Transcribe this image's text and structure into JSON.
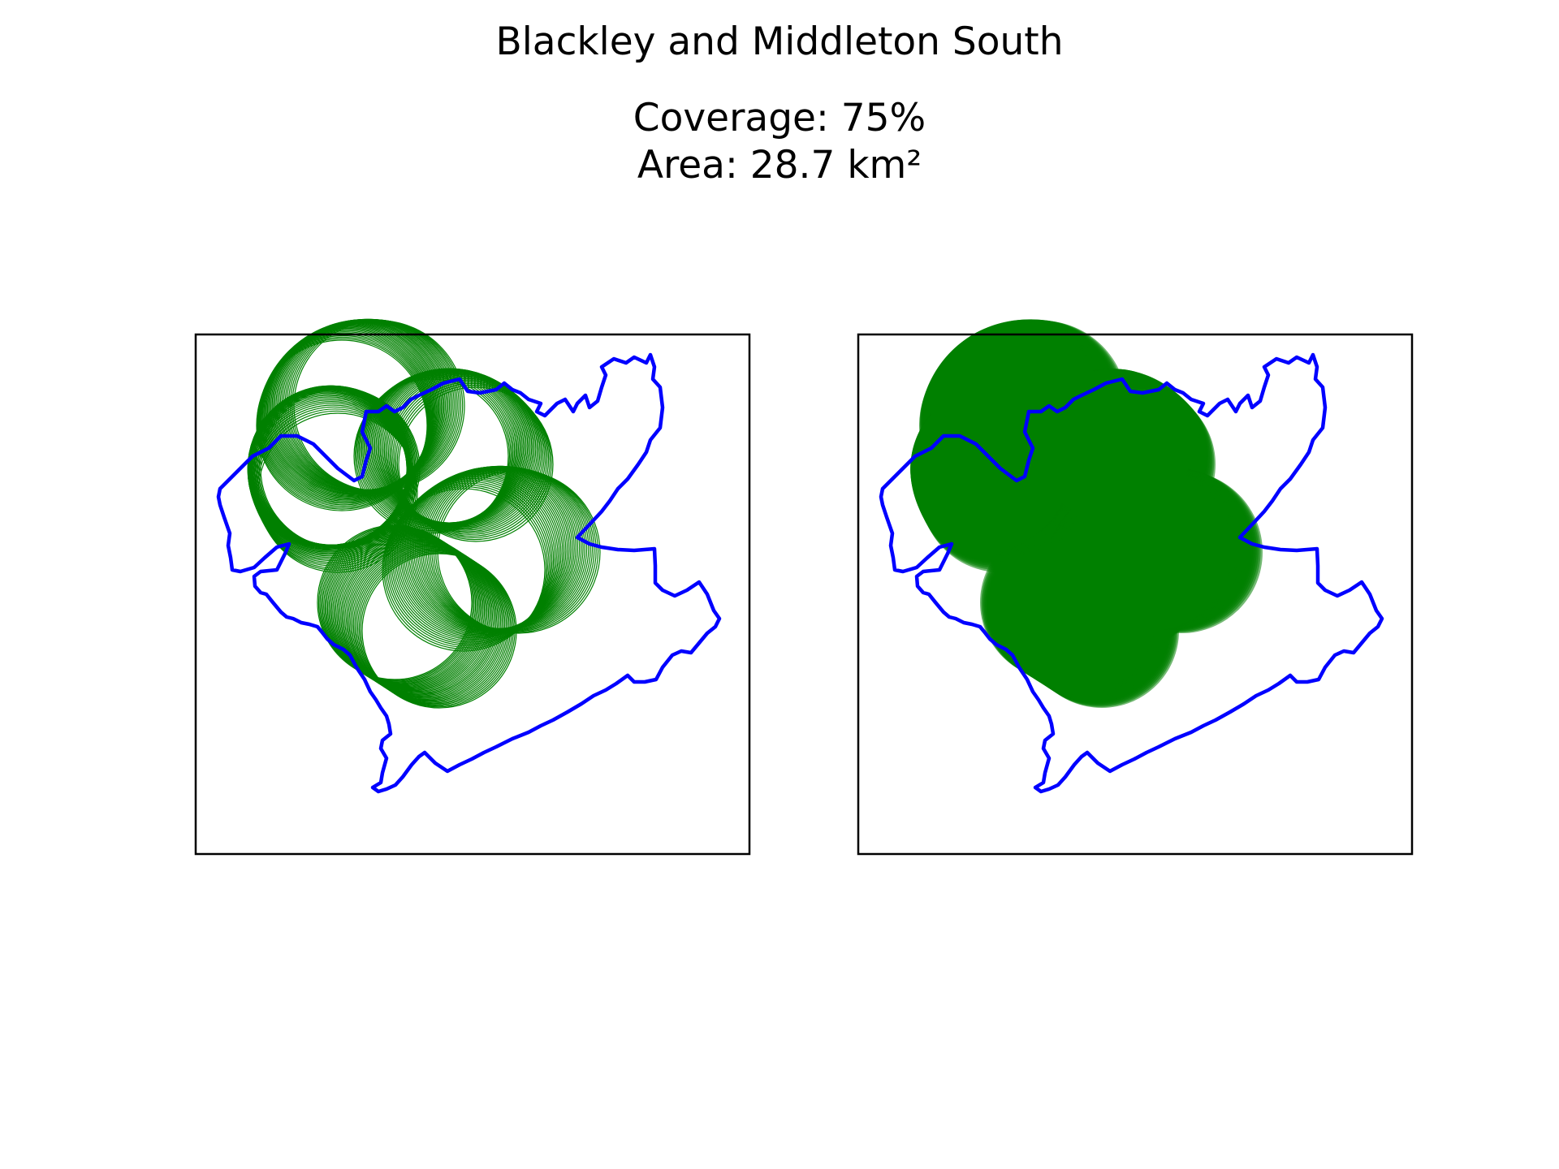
{
  "figure": {
    "title": "Blackley and Middleton South",
    "coverage_text": "Coverage: 75%",
    "area_text": "Area: 28.7 km²"
  },
  "colors": {
    "boundary": "#0000ff",
    "coverage": "#008000",
    "frame": "#000000",
    "background": "#ffffff"
  },
  "map_data": {
    "coverage_percent": 75,
    "area_km2": 28.7,
    "panels": [
      {
        "name": "coverage-outline",
        "style": "circle outlines"
      },
      {
        "name": "coverage-filled",
        "style": "filled circles"
      }
    ]
  }
}
